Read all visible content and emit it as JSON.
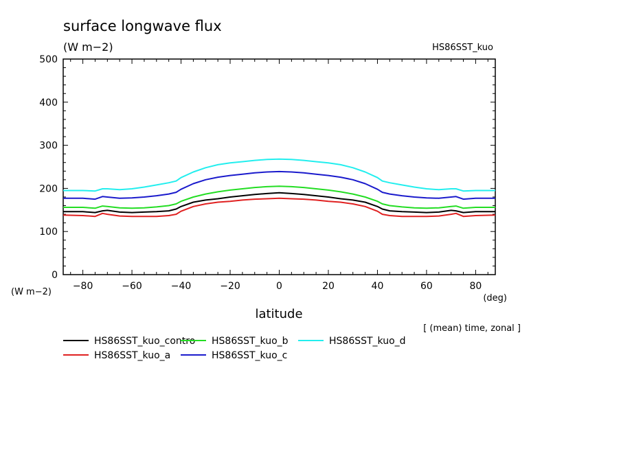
{
  "chart_data": {
    "type": "line",
    "title": "surface longwave flux",
    "units": "(W m−2)",
    "dataset": "HS86SST_kuo",
    "xlabel": "latitude",
    "xunit": "(deg)",
    "yunit": "(W m−2)",
    "note": "[ (mean) time, zonal ]",
    "xlim": [
      -88,
      88
    ],
    "ylim": [
      0,
      500
    ],
    "xticks": [
      "−80",
      "−60",
      "−40",
      "−20",
      "0",
      "20",
      "40",
      "60",
      "80"
    ],
    "yticks": [
      "0",
      "100",
      "200",
      "300",
      "400",
      "500"
    ],
    "x": [
      -88,
      -80,
      -75,
      -72,
      -70,
      -65,
      -60,
      -55,
      -50,
      -45,
      -42,
      -40,
      -35,
      -30,
      -25,
      -20,
      -15,
      -10,
      -5,
      0,
      5,
      10,
      15,
      20,
      25,
      30,
      35,
      40,
      42,
      45,
      50,
      55,
      60,
      65,
      70,
      72,
      75,
      80,
      88
    ],
    "series": [
      {
        "name": "HS86SST_kuo_contro",
        "color": "#000000",
        "values": [
          146,
          146,
          144,
          148,
          149,
          145,
          144,
          145,
          146,
          148,
          152,
          158,
          168,
          173,
          176,
          180,
          183,
          186,
          188,
          190,
          188,
          186,
          183,
          180,
          176,
          173,
          168,
          158,
          152,
          148,
          146,
          145,
          144,
          145,
          149,
          148,
          144,
          146,
          146
        ]
      },
      {
        "name": "HS86SST_kuo_a",
        "color": "#e02020",
        "values": [
          138,
          137,
          135,
          142,
          140,
          136,
          135,
          135,
          135,
          137,
          140,
          147,
          158,
          164,
          168,
          170,
          173,
          175,
          176,
          177,
          176,
          175,
          173,
          170,
          168,
          164,
          158,
          147,
          140,
          137,
          135,
          135,
          135,
          136,
          140,
          142,
          135,
          137,
          138
        ]
      },
      {
        "name": "HS86SST_kuo_b",
        "color": "#22dd22",
        "values": [
          156,
          156,
          154,
          159,
          158,
          155,
          154,
          155,
          157,
          160,
          164,
          170,
          180,
          187,
          192,
          196,
          199,
          202,
          204,
          205,
          204,
          202,
          199,
          196,
          192,
          187,
          180,
          170,
          164,
          160,
          157,
          155,
          154,
          155,
          158,
          159,
          154,
          156,
          156
        ]
      },
      {
        "name": "HS86SST_kuo_c",
        "color": "#1a1acc",
        "values": [
          177,
          177,
          175,
          181,
          180,
          177,
          178,
          180,
          183,
          187,
          191,
          198,
          211,
          220,
          226,
          230,
          233,
          236,
          238,
          239,
          238,
          236,
          233,
          230,
          226,
          220,
          211,
          198,
          191,
          187,
          183,
          180,
          178,
          177,
          180,
          181,
          175,
          177,
          177
        ]
      },
      {
        "name": "HS86SST_kuo_d",
        "color": "#22eeee",
        "values": [
          195,
          195,
          194,
          199,
          199,
          197,
          199,
          203,
          208,
          213,
          217,
          225,
          238,
          248,
          255,
          259,
          262,
          265,
          267,
          268,
          267,
          265,
          262,
          259,
          255,
          248,
          238,
          225,
          217,
          213,
          208,
          203,
          199,
          197,
          199,
          199,
          194,
          195,
          195
        ]
      }
    ],
    "grid": false,
    "legend_position": "bottom"
  }
}
